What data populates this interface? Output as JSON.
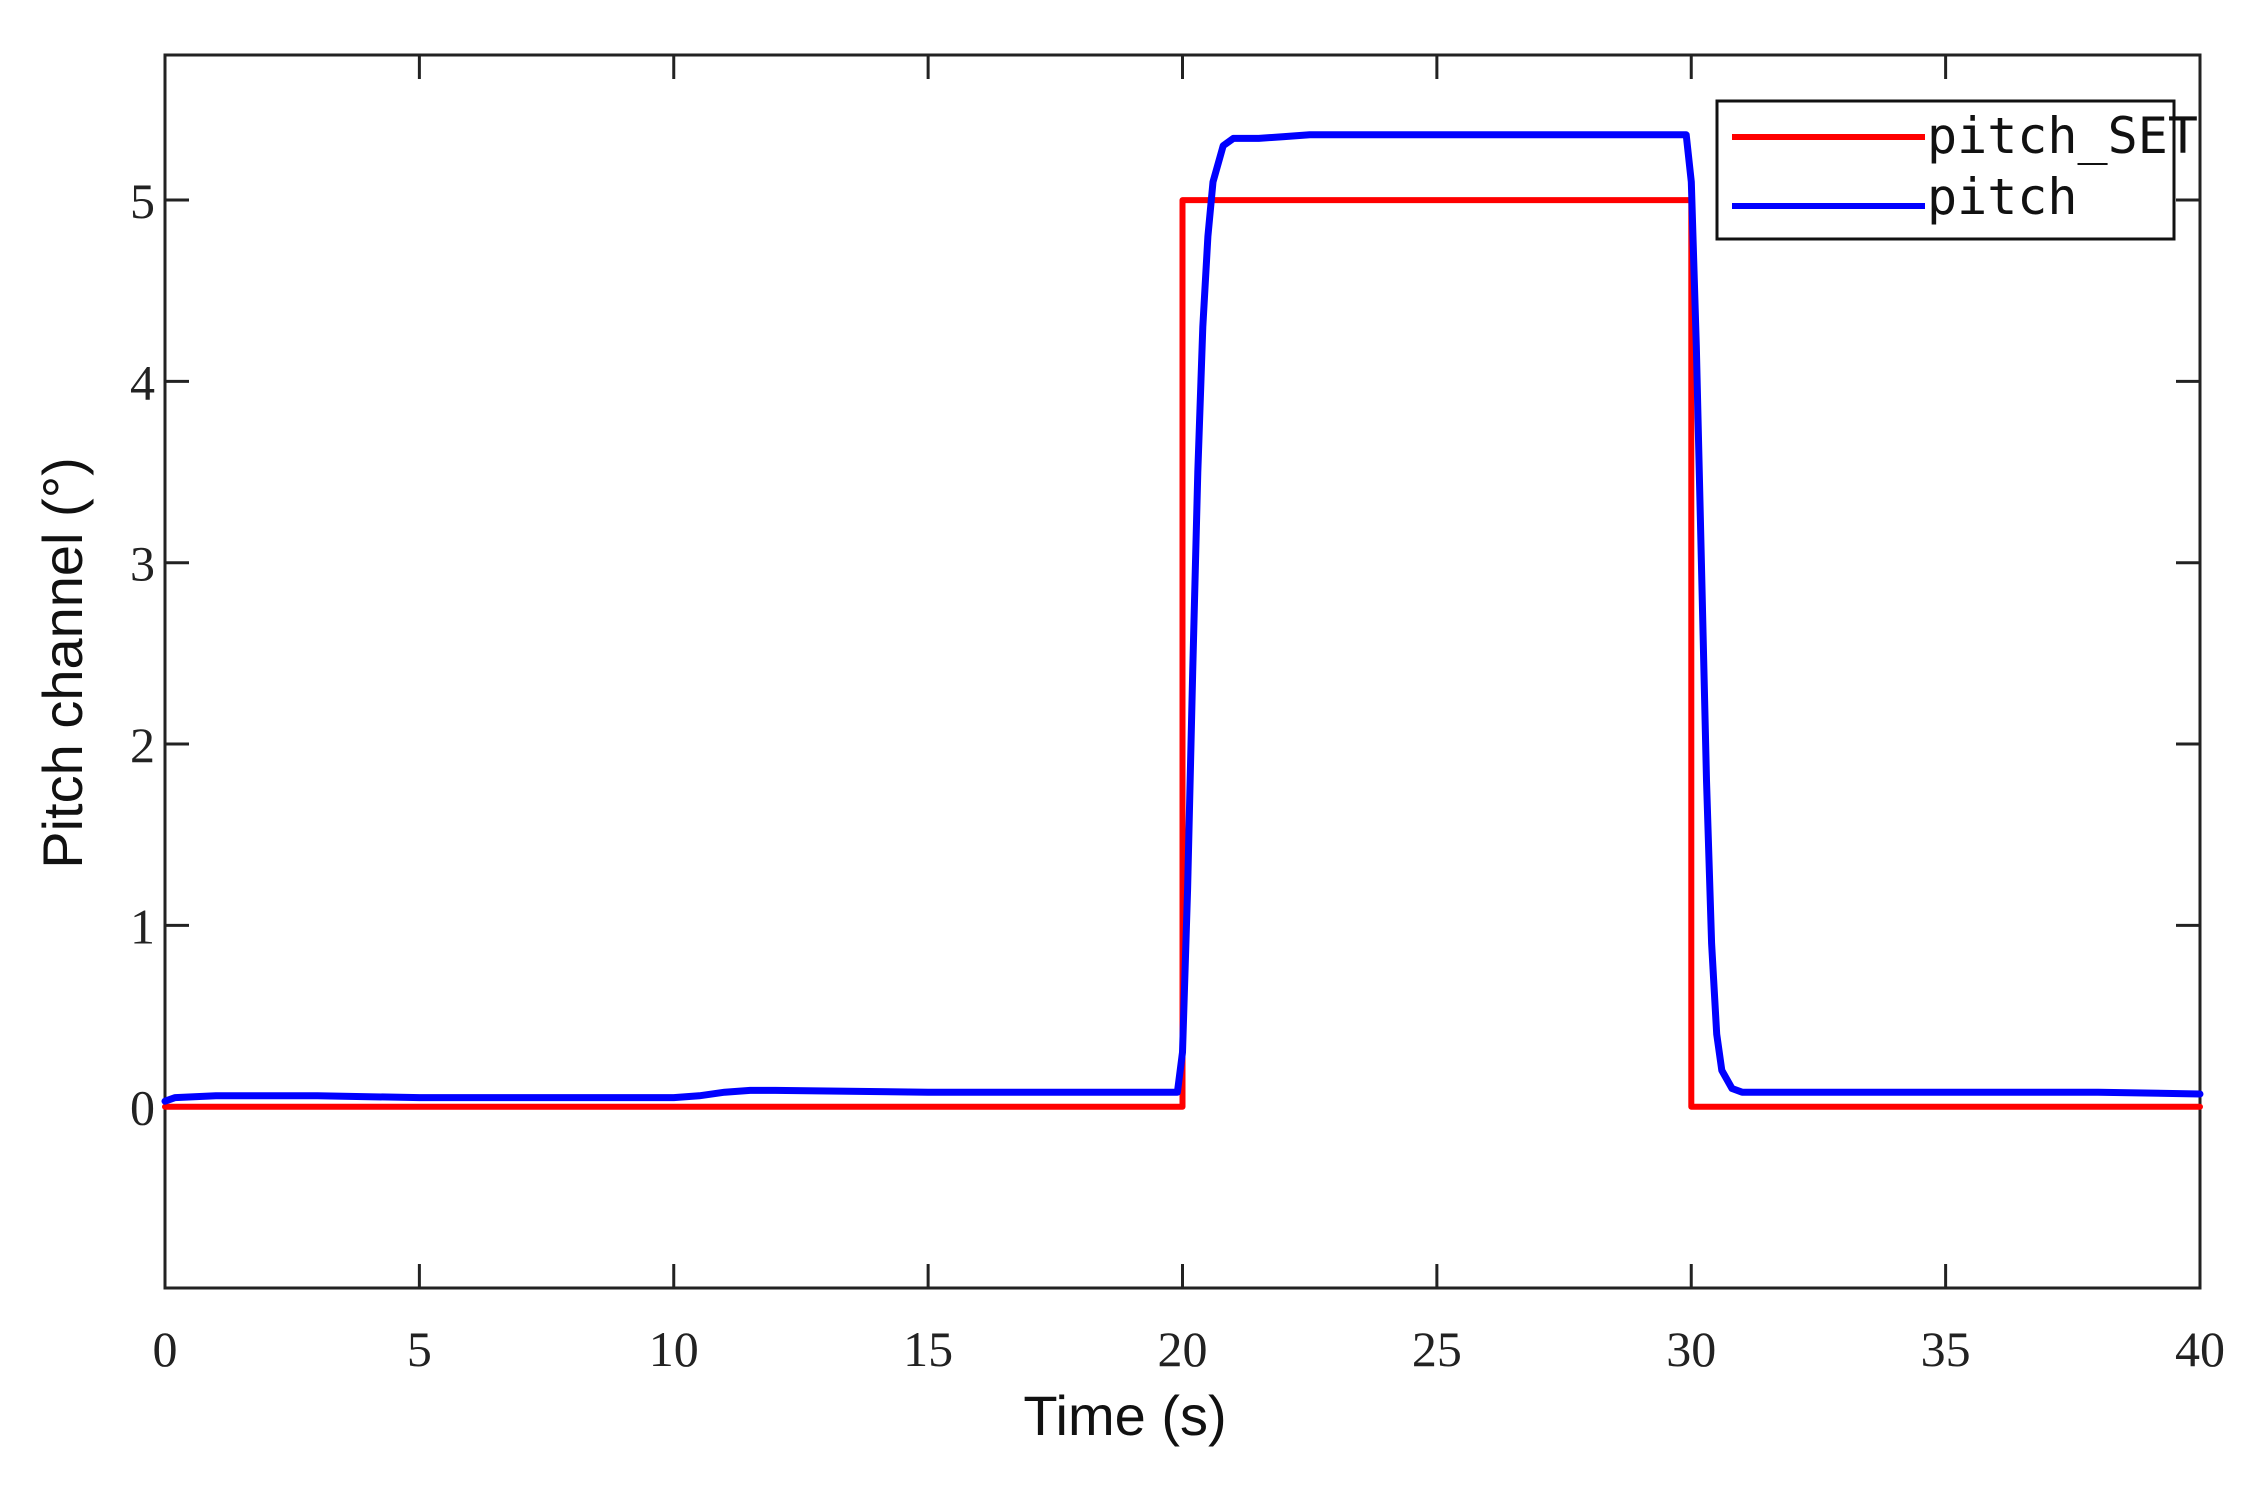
{
  "chart_data": {
    "type": "line",
    "title": "",
    "xlabel": "Time  (s)",
    "ylabel": "Pitch channel (°)",
    "xlim": [
      0,
      40
    ],
    "ylim": [
      -1,
      5.8
    ],
    "xticks": [
      0,
      5,
      10,
      15,
      20,
      25,
      30,
      35,
      40
    ],
    "xtick_labels": [
      "0",
      "5",
      "10",
      "15",
      "20",
      "25",
      "30",
      "35",
      "40"
    ],
    "yticks": [
      0,
      1,
      2,
      3,
      4,
      5
    ],
    "ytick_labels": [
      "0",
      "1",
      "2",
      "3",
      "4",
      "5"
    ],
    "grid": false,
    "legend_position": "top-right",
    "series": [
      {
        "name": "pitch_SET",
        "color": "#ff0000",
        "x": [
          0,
          20,
          20,
          30,
          30,
          40
        ],
        "y": [
          0,
          0,
          5,
          5,
          0,
          0
        ]
      },
      {
        "name": "pitch",
        "color": "#0000ff",
        "x": [
          0,
          0.2,
          1,
          3,
          5,
          8,
          10,
          10.5,
          11,
          11.5,
          12,
          15,
          18,
          19.9,
          20.0,
          20.1,
          20.2,
          20.3,
          20.4,
          20.5,
          20.6,
          20.8,
          21,
          21.5,
          22,
          22.5,
          23,
          25,
          27,
          29,
          29.9,
          30.0,
          30.1,
          30.2,
          30.3,
          30.4,
          30.5,
          30.6,
          30.8,
          31,
          32,
          35,
          38,
          40
        ],
        "y": [
          0.03,
          0.05,
          0.06,
          0.06,
          0.05,
          0.05,
          0.05,
          0.06,
          0.08,
          0.09,
          0.09,
          0.08,
          0.08,
          0.08,
          0.3,
          1.2,
          2.4,
          3.5,
          4.3,
          4.8,
          5.1,
          5.3,
          5.34,
          5.34,
          5.35,
          5.36,
          5.36,
          5.36,
          5.36,
          5.36,
          5.36,
          5.1,
          4.2,
          3.0,
          1.8,
          0.9,
          0.4,
          0.2,
          0.1,
          0.08,
          0.08,
          0.08,
          0.08,
          0.07
        ]
      }
    ]
  }
}
